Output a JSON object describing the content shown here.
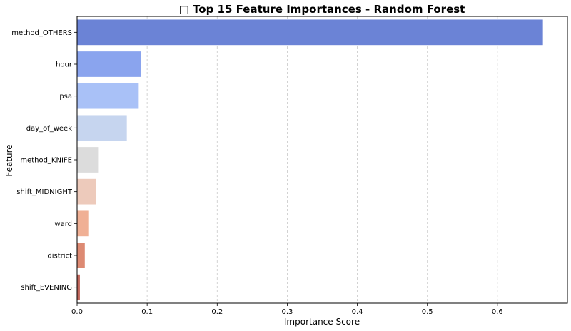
{
  "chart_data": {
    "type": "bar",
    "orientation": "horizontal",
    "title": "□ Top 15 Feature Importances - Random Forest",
    "xlabel": "Importance Score",
    "ylabel": "Feature",
    "xlim": [
      0,
      0.7
    ],
    "xticks": [
      "0.0",
      "0.1",
      "0.2",
      "0.3",
      "0.4",
      "0.5",
      "0.6"
    ],
    "grid": "x-dashed",
    "categories": [
      "method_OTHERS",
      "hour",
      "psa",
      "day_of_week",
      "method_KNIFE",
      "shift_MIDNIGHT",
      "ward",
      "district",
      "shift_EVENING"
    ],
    "values": [
      0.665,
      0.091,
      0.088,
      0.071,
      0.031,
      0.027,
      0.016,
      0.011,
      0.004
    ],
    "colors": [
      "#6b83d6",
      "#8aa4ee",
      "#a9c1f7",
      "#c6d5ef",
      "#dcdcdc",
      "#edcabb",
      "#f0b095",
      "#dd8a73",
      "#c0655a"
    ]
  }
}
